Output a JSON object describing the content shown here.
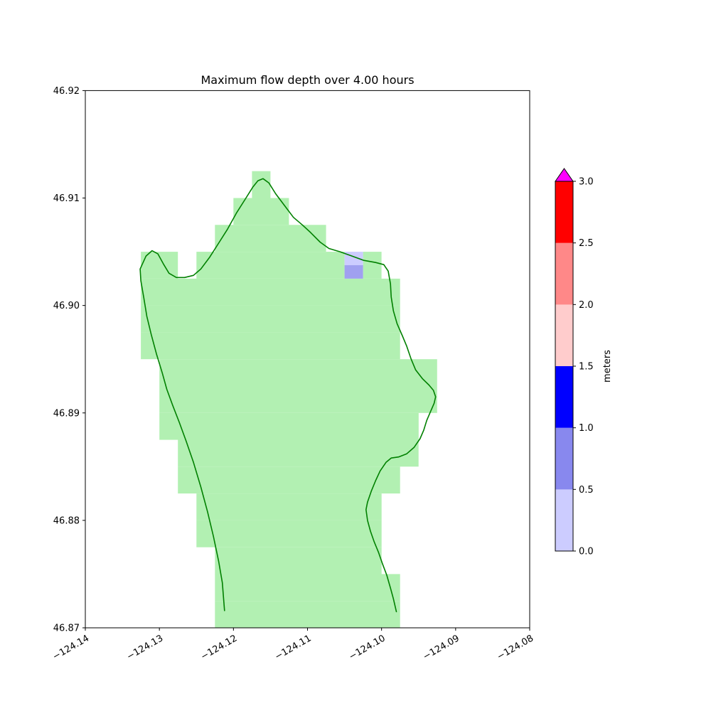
{
  "title": "Maximum flow depth over 4.00 hours",
  "axes": {
    "xlim": [
      -124.14,
      -124.08
    ],
    "ylim": [
      46.87,
      46.92
    ],
    "xtick_values": [
      -124.14,
      -124.13,
      -124.12,
      -124.11,
      -124.1,
      -124.09,
      -124.08
    ],
    "xtick_labels": [
      "−124.14",
      "−124.13",
      "−124.12",
      "−124.11",
      "−124.10",
      "−124.09",
      "−124.08"
    ],
    "ytick_values": [
      46.87,
      46.88,
      46.89,
      46.9,
      46.91,
      46.92
    ],
    "ytick_labels": [
      "46.87",
      "46.88",
      "46.89",
      "46.90",
      "46.91",
      "46.92"
    ]
  },
  "colorbar": {
    "label": "meters",
    "range": [
      0.0,
      3.0
    ],
    "tick_values": [
      0.0,
      0.5,
      1.0,
      1.5,
      2.0,
      2.5,
      3.0
    ],
    "tick_labels": [
      "0.0",
      "0.5",
      "1.0",
      "1.5",
      "2.0",
      "2.5",
      "3.0"
    ],
    "segments": [
      {
        "from": 0.0,
        "to": 0.5,
        "color": "#ccccff"
      },
      {
        "from": 0.5,
        "to": 1.0,
        "color": "#8888ee"
      },
      {
        "from": 1.0,
        "to": 1.5,
        "color": "#0000ff"
      },
      {
        "from": 1.5,
        "to": 2.0,
        "color": "#ffcccc"
      },
      {
        "from": 2.0,
        "to": 2.5,
        "color": "#ff8888"
      },
      {
        "from": 2.5,
        "to": 3.0,
        "color": "#ff0000"
      }
    ],
    "over_color": "#ff00ff"
  },
  "chart_data": {
    "type": "heatmap",
    "title": "Maximum flow depth over 4.00 hours",
    "units": "meters",
    "land_fill_color": "#b2f0b2",
    "coastline_color": "#008000",
    "grid": {
      "origin_lon": -124.14,
      "origin_lat": 46.87,
      "cell_deg": 0.0025,
      "rows": [
        {
          "j": 16,
          "spans": [
            [
              9,
              9
            ]
          ]
        },
        {
          "j": 15,
          "spans": [
            [
              8,
              10
            ]
          ]
        },
        {
          "j": 14,
          "spans": [
            [
              7,
              12
            ]
          ]
        },
        {
          "j": 13,
          "spans": [
            [
              3,
              4
            ],
            [
              6,
              13
            ],
            [
              15,
              15
            ]
          ]
        },
        {
          "j": 12,
          "spans": [
            [
              3,
              16
            ]
          ]
        },
        {
          "j": 11,
          "spans": [
            [
              3,
              16
            ]
          ]
        },
        {
          "j": 10,
          "spans": [
            [
              3,
              16
            ]
          ]
        },
        {
          "j": 9,
          "spans": [
            [
              4,
              18
            ]
          ]
        },
        {
          "j": 8,
          "spans": [
            [
              4,
              18
            ]
          ]
        },
        {
          "j": 7,
          "spans": [
            [
              4,
              17
            ]
          ]
        },
        {
          "j": 6,
          "spans": [
            [
              5,
              17
            ]
          ]
        },
        {
          "j": 5,
          "spans": [
            [
              5,
              16
            ]
          ]
        },
        {
          "j": 4,
          "spans": [
            [
              6,
              15
            ]
          ]
        },
        {
          "j": 3,
          "spans": [
            [
              6,
              15
            ]
          ]
        },
        {
          "j": 2,
          "spans": [
            [
              7,
              15
            ]
          ]
        },
        {
          "j": 1,
          "spans": [
            [
              7,
              16
            ]
          ]
        },
        {
          "j": 0,
          "spans": [
            [
              7,
              16
            ]
          ]
        }
      ]
    },
    "depth_cells": [
      {
        "lon": -124.105,
        "lat": 46.90375,
        "w": 0.0025,
        "h": 0.00125,
        "color": "#ccccff"
      },
      {
        "lon": -124.105,
        "lat": 46.9025,
        "w": 0.0025,
        "h": 0.00125,
        "color": "#a0a0f0"
      }
    ],
    "coastline": [
      [
        -124.1212,
        46.8716
      ],
      [
        -124.1215,
        46.8742
      ],
      [
        -124.122,
        46.8762
      ],
      [
        -124.1227,
        46.8785
      ],
      [
        -124.1235,
        46.8808
      ],
      [
        -124.1244,
        46.8831
      ],
      [
        -124.1254,
        46.8854
      ],
      [
        -124.1264,
        46.8874
      ],
      [
        -124.1273,
        46.8891
      ],
      [
        -124.1282,
        46.8907
      ],
      [
        -124.129,
        46.8922
      ],
      [
        -124.1296,
        46.8937
      ],
      [
        -124.1304,
        46.8955
      ],
      [
        -124.1311,
        46.8973
      ],
      [
        -124.1317,
        46.899
      ],
      [
        -124.1321,
        46.9007
      ],
      [
        -124.1325,
        46.9023
      ],
      [
        -124.1326,
        46.9034
      ],
      [
        -124.1318,
        46.9046
      ],
      [
        -124.131,
        46.9051
      ],
      [
        -124.1302,
        46.9048
      ],
      [
        -124.1294,
        46.9038
      ],
      [
        -124.1287,
        46.903
      ],
      [
        -124.1277,
        46.9026
      ],
      [
        -124.1266,
        46.9026
      ],
      [
        -124.1254,
        46.9028
      ],
      [
        -124.1244,
        46.9034
      ],
      [
        -124.1232,
        46.9045
      ],
      [
        -124.122,
        46.9058
      ],
      [
        -124.1208,
        46.9071
      ],
      [
        -124.1196,
        46.9086
      ],
      [
        -124.1184,
        46.9099
      ],
      [
        -124.1174,
        46.911
      ],
      [
        -124.1167,
        46.9116
      ],
      [
        -124.116,
        46.9118
      ],
      [
        -124.1152,
        46.9114
      ],
      [
        -124.1143,
        46.9104
      ],
      [
        -124.1131,
        46.9093
      ],
      [
        -124.1119,
        46.9082
      ],
      [
        -124.1107,
        46.9075
      ],
      [
        -124.1096,
        46.9068
      ],
      [
        -124.1083,
        46.9059
      ],
      [
        -124.1071,
        46.9053
      ],
      [
        -124.1056,
        46.905
      ],
      [
        -124.104,
        46.9046
      ],
      [
        -124.1024,
        46.9042
      ],
      [
        -124.1008,
        46.904
      ],
      [
        -124.0997,
        46.9038
      ],
      [
        -124.0991,
        46.9032
      ],
      [
        -124.0988,
        46.902
      ],
      [
        -124.0987,
        46.9008
      ],
      [
        -124.0984,
        46.8995
      ],
      [
        -124.0979,
        46.8983
      ],
      [
        -124.0972,
        46.8972
      ],
      [
        -124.0966,
        46.8962
      ],
      [
        -124.096,
        46.895
      ],
      [
        -124.0954,
        46.894
      ],
      [
        -124.0945,
        46.8932
      ],
      [
        -124.0936,
        46.8926
      ],
      [
        -124.093,
        46.8921
      ],
      [
        -124.0927,
        46.8915
      ],
      [
        -124.0929,
        46.8909
      ],
      [
        -124.0934,
        46.8901
      ],
      [
        -124.0939,
        46.8893
      ],
      [
        -124.0943,
        46.8884
      ],
      [
        -124.0948,
        46.8876
      ],
      [
        -124.0956,
        46.8868
      ],
      [
        -124.0966,
        46.8862
      ],
      [
        -124.0977,
        46.8859
      ],
      [
        -124.0987,
        46.8858
      ],
      [
        -124.0994,
        46.8854
      ],
      [
        -124.1002,
        46.8846
      ],
      [
        -124.1008,
        46.8837
      ],
      [
        -124.1014,
        46.8827
      ],
      [
        -124.1019,
        46.8817
      ],
      [
        -124.1021,
        46.881
      ],
      [
        -124.1019,
        46.88
      ],
      [
        -124.1015,
        46.879
      ],
      [
        -124.101,
        46.878
      ],
      [
        -124.1004,
        46.877
      ],
      [
        -124.0999,
        46.876
      ],
      [
        -124.0993,
        46.8749
      ],
      [
        -124.0988,
        46.8737
      ],
      [
        -124.0984,
        46.8727
      ],
      [
        -124.098,
        46.8715
      ]
    ]
  }
}
